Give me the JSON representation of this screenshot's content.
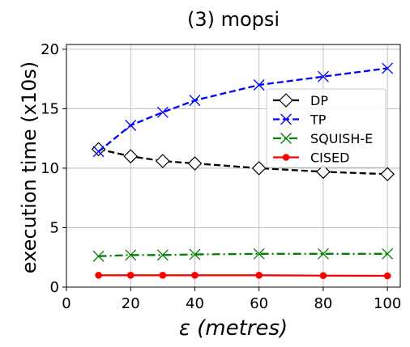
{
  "chart_data": {
    "type": "line",
    "title": "(3) mopsi",
    "xlabel": "ε (metres)",
    "ylabel": "execution time (x10s)",
    "xlim": [
      0,
      104
    ],
    "ylim": [
      0,
      20.4
    ],
    "xticks": [
      0,
      20,
      40,
      60,
      80,
      100
    ],
    "yticks": [
      0,
      5,
      10,
      15,
      20
    ],
    "grid": true,
    "legend_position": "center-right",
    "x": [
      10,
      20,
      30,
      40,
      60,
      80,
      100
    ],
    "series": [
      {
        "name": "DP",
        "values": [
          11.6,
          11.0,
          10.6,
          10.4,
          10.0,
          9.7,
          9.5
        ],
        "color": "#000000",
        "dash": "dashed",
        "marker": "diamond"
      },
      {
        "name": "TP",
        "values": [
          11.4,
          13.6,
          14.7,
          15.7,
          17.0,
          17.7,
          18.4
        ],
        "color": "#0000ff",
        "dash": "dashed",
        "marker": "x"
      },
      {
        "name": "SQUISH-E",
        "values": [
          2.6,
          2.7,
          2.7,
          2.75,
          2.8,
          2.8,
          2.8
        ],
        "color": "#008000",
        "dash": "dashdot",
        "marker": "x"
      },
      {
        "name": "CISED",
        "values": [
          1.0,
          1.0,
          1.0,
          1.0,
          1.0,
          0.97,
          0.95
        ],
        "color": "#ff0000",
        "dash": "solid",
        "marker": "dot"
      }
    ]
  }
}
